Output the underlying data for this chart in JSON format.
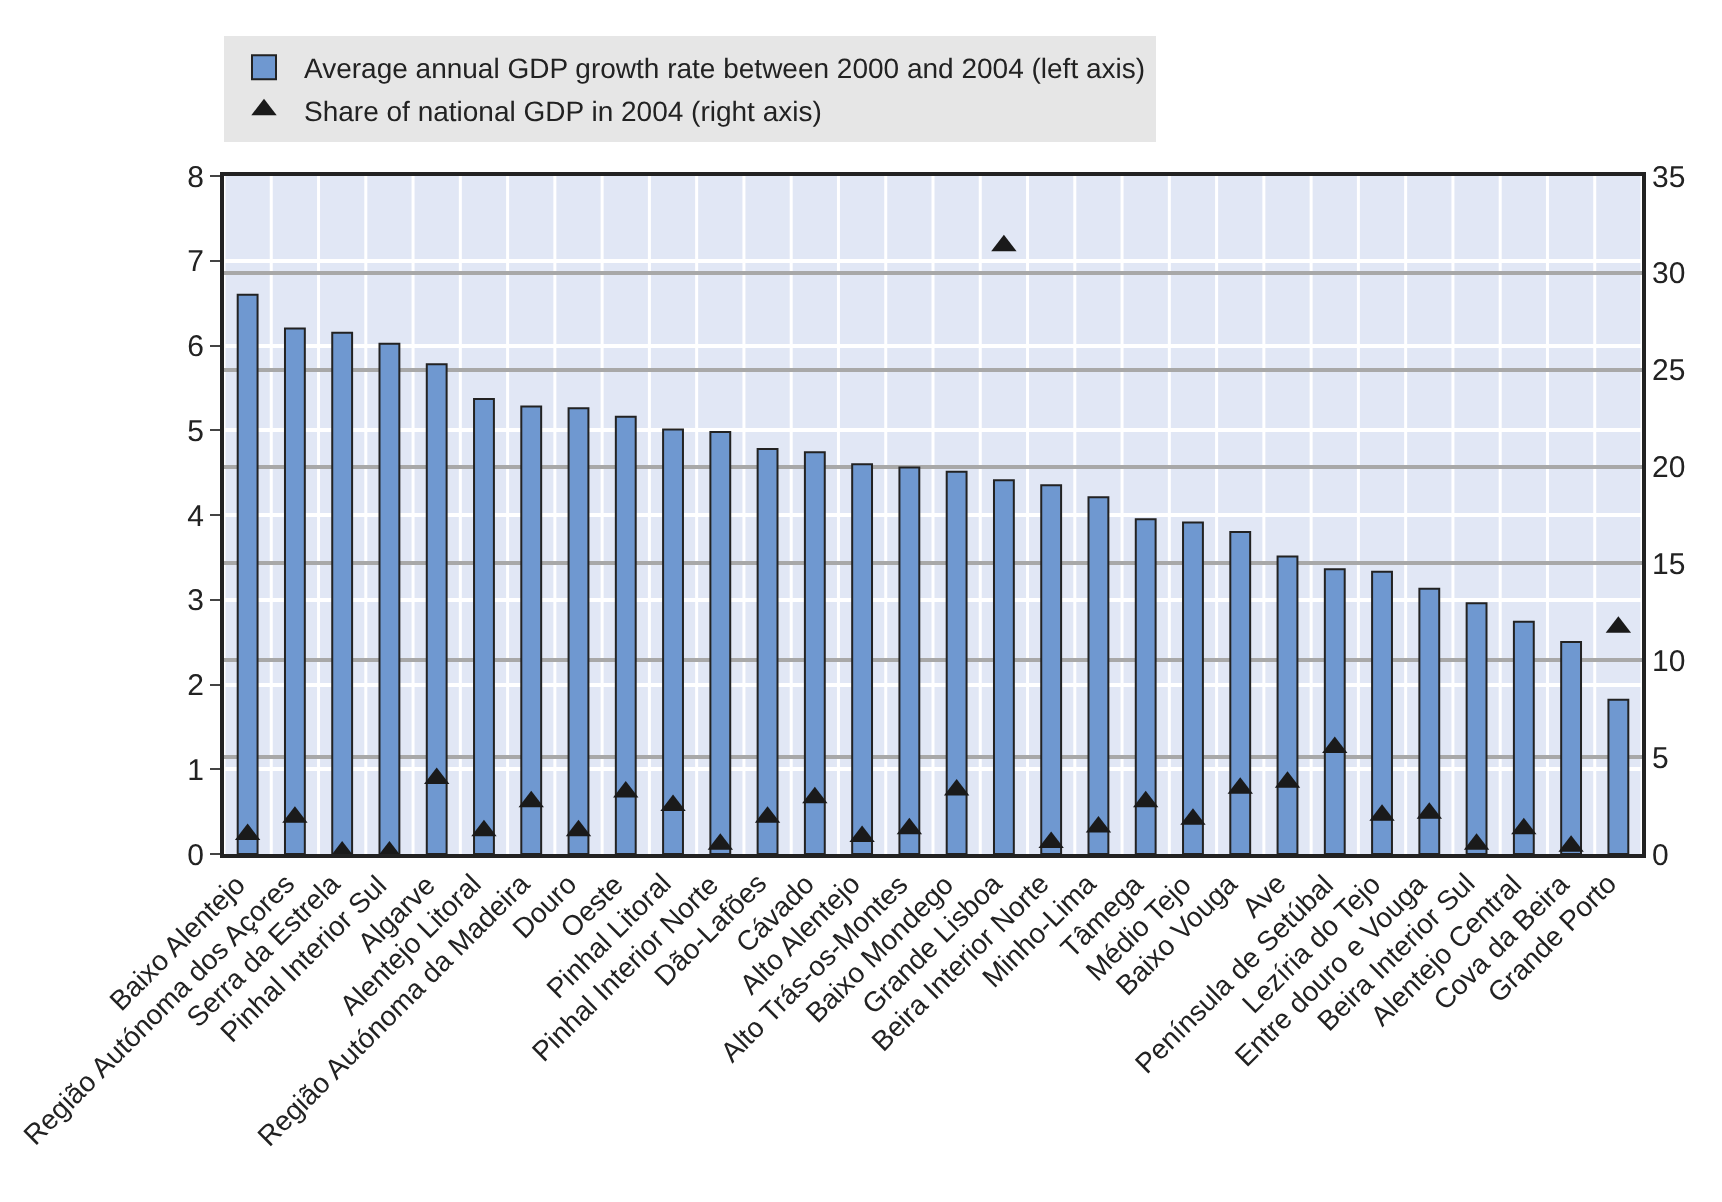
{
  "chart_data": {
    "type": "bar",
    "categories": [
      "Baixo Alentejo",
      "Região Autónoma dos Açores",
      "Serra da Estrela",
      "Pinhal Interior Sul",
      "Algarve",
      "Alentejo Litoral",
      "Região Autónoma da Madeira",
      "Douro",
      "Oeste",
      "Pinhal Litoral",
      "Pinhal Interior Norte",
      "Dão-Lafões",
      "Cávado",
      "Alto Alentejo",
      "Alto Trás-os-Montes",
      "Baixo Mondego",
      "Grande Lisboa",
      "Beira Interior Norte",
      "Minho-Lima",
      "Tâmega",
      "Médio Tejo",
      "Baixo Vouga",
      "Ave",
      "Península de Setúbal",
      "Lezíria do Tejo",
      "Entre douro e Vouga",
      "Beira Interior Sul",
      "Alentejo Central",
      "Cova da Beira",
      "Grande Porto"
    ],
    "series": [
      {
        "name": "Average annual GDP growth rate between 2000 and 2004 (left axis)",
        "color": "#6f98d0",
        "values": [
          6.6,
          6.2,
          6.15,
          6.02,
          5.78,
          5.37,
          5.28,
          5.26,
          5.16,
          5.01,
          4.98,
          4.78,
          4.74,
          4.6,
          4.56,
          4.51,
          4.41,
          4.35,
          4.21,
          3.95,
          3.91,
          3.8,
          3.51,
          3.36,
          3.33,
          3.13,
          2.96,
          2.74,
          2.5,
          1.82
        ]
      },
      {
        "name": "Share of national GDP in 2004 (right axis)",
        "type": "scatter",
        "axis": "y2",
        "marker": "triangle",
        "color": "#1a1a1a",
        "values": [
          1.0,
          1.9,
          0.1,
          0.1,
          3.9,
          1.2,
          2.7,
          1.2,
          3.2,
          2.5,
          0.5,
          1.9,
          2.9,
          0.9,
          1.3,
          3.3,
          31.4,
          0.6,
          1.4,
          2.7,
          1.8,
          3.4,
          3.7,
          5.5,
          2.0,
          2.1,
          0.5,
          1.3,
          0.4,
          11.7
        ]
      }
    ],
    "ylim": [
      0,
      8
    ],
    "yticks": [
      0,
      1,
      2,
      3,
      4,
      5,
      6,
      7,
      8
    ],
    "y2lim": [
      0,
      35
    ],
    "y2ticks": [
      0,
      5,
      10,
      15,
      20,
      25,
      30,
      35
    ],
    "grid": true,
    "legend": "top"
  }
}
